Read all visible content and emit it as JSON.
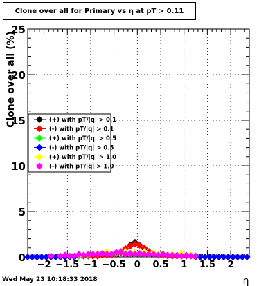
{
  "title": "Clone  over all for Primary vs   η at pT > 0.11",
  "timestamp": "Wed May 23 10:18:33 2018",
  "chart_data": {
    "type": "scatter",
    "title": "Clone  over all for Primary vs   η at pT > 0.11",
    "xlabel": "η",
    "ylabel": "Clone  over all (%)",
    "xlim": [
      -2.35,
      2.4
    ],
    "ylim": [
      0,
      25
    ],
    "xticks": [
      -2,
      -1.5,
      -1,
      -0.5,
      0,
      0.5,
      1,
      1.5,
      2
    ],
    "xtick_labels": [
      "−2",
      "−1.5",
      "−1",
      "−0.5",
      "0",
      "0.5",
      "1",
      "1.5",
      "2"
    ],
    "yticks": [
      0,
      5,
      10,
      15,
      20,
      25
    ],
    "ytick_labels": [
      "0",
      "5",
      "10",
      "15",
      "20",
      "25"
    ],
    "grid": true,
    "legend_position": "left-middle",
    "series": [
      {
        "name": "(+) with pT/|q| > 0.1",
        "color": "#000000",
        "x": [
          -2.25,
          -2.15,
          -2.05,
          -1.95,
          -1.85,
          -1.75,
          -1.65,
          -1.55,
          -1.45,
          -1.35,
          -1.25,
          -1.15,
          -1.05,
          -0.95,
          -0.85,
          -0.75,
          -0.65,
          -0.55,
          -0.45,
          -0.35,
          -0.25,
          -0.15,
          -0.05,
          0.05,
          0.15,
          0.25,
          0.35,
          0.45,
          0.55,
          0.65,
          0.75,
          0.85,
          0.95,
          1.05,
          1.15,
          1.25,
          1.35,
          1.45,
          1.55,
          1.65,
          1.75,
          1.85,
          1.95,
          2.05,
          2.15,
          2.25
        ],
        "y": [
          0,
          0,
          0,
          0,
          0,
          0,
          0,
          0,
          0,
          0,
          0.1,
          0.1,
          0.1,
          0.1,
          0.1,
          0.2,
          0.2,
          0.2,
          0.3,
          0.5,
          0.9,
          1.3,
          1.6,
          1.3,
          0.9,
          0.5,
          0.3,
          0.2,
          0.2,
          0.2,
          0.1,
          0.1,
          0.1,
          0.1,
          0.1,
          0,
          0,
          0,
          0,
          0,
          0,
          0,
          0,
          0,
          0,
          0
        ]
      },
      {
        "name": "(-) with pT/|q| > 0.1",
        "color": "#ff0000",
        "x": [
          -2.25,
          -2.15,
          -2.05,
          -1.95,
          -1.85,
          -1.75,
          -1.65,
          -1.55,
          -1.45,
          -1.35,
          -1.25,
          -1.15,
          -1.05,
          -0.95,
          -0.85,
          -0.75,
          -0.65,
          -0.55,
          -0.45,
          -0.35,
          -0.25,
          -0.15,
          -0.05,
          0.05,
          0.15,
          0.25,
          0.35,
          0.45,
          0.55,
          0.65,
          0.75,
          0.85,
          0.95,
          1.05,
          1.15,
          1.25,
          1.35,
          1.45,
          1.55,
          1.65,
          1.75,
          1.85,
          1.95,
          2.05,
          2.15,
          2.25
        ],
        "y": [
          0,
          0,
          0,
          0,
          0,
          0,
          0,
          0,
          0,
          0,
          0.1,
          0.1,
          0.1,
          0.1,
          0.1,
          0.2,
          0.2,
          0.2,
          0.3,
          0.5,
          0.9,
          1.2,
          1.4,
          1.3,
          1.0,
          0.6,
          0.3,
          0.2,
          0.2,
          0.1,
          0.1,
          0.1,
          0.1,
          0.1,
          0.1,
          0,
          0,
          0,
          0,
          0,
          0,
          0,
          0,
          0,
          0,
          0
        ]
      },
      {
        "name": "(+) with pT/|q| > 0.5",
        "color": "#00ff00",
        "x": [
          -2.25,
          -2.05,
          -1.85,
          -1.65,
          -1.45,
          -1.25,
          -1.05,
          -0.85,
          -0.65,
          -0.45,
          -0.25,
          -0.05,
          0.15,
          0.35,
          0.55,
          0.75,
          0.95,
          1.15,
          1.35,
          1.55,
          1.75,
          1.95,
          2.15
        ],
        "y": [
          0,
          0,
          0,
          0,
          0,
          0.1,
          0.2,
          0.3,
          0.5,
          0.4,
          0.5,
          0.3,
          0.4,
          0.4,
          0.3,
          0.3,
          0.3,
          0.2,
          0,
          0,
          0,
          0,
          0
        ]
      },
      {
        "name": "(-) with pT/|q| > 0.5",
        "color": "#0000ff",
        "x": [
          -2.35,
          -2.25,
          -2.15,
          -2.05,
          -1.95,
          -1.85,
          -1.75,
          -1.65,
          -1.55,
          -1.45,
          -1.35,
          1.35,
          1.45,
          1.55,
          1.65,
          1.75,
          1.85,
          1.95,
          2.05,
          2.15,
          2.25,
          2.35
        ],
        "y": [
          0,
          0,
          0,
          0,
          0,
          0,
          0,
          0,
          0,
          0,
          0,
          0,
          0,
          0,
          0,
          0,
          0,
          0,
          0,
          0,
          0,
          0
        ]
      },
      {
        "name": "(+) with pT/|q| > 1.0",
        "color": "#ffff00",
        "x": [
          -1.25,
          -1.05,
          -0.85,
          -0.65,
          -0.45,
          -0.25,
          -0.05,
          0.15,
          0.35,
          0.55,
          0.75,
          0.95,
          1.15
        ],
        "y": [
          0.2,
          0.3,
          0.4,
          0.6,
          0.5,
          0.6,
          0.5,
          0.6,
          0.5,
          0.4,
          0.3,
          0.4,
          0.2
        ]
      },
      {
        "name": "(-) with pT/|q| > 1.0",
        "color": "#ff00ff",
        "x": [
          -1.85,
          -1.65,
          -1.55,
          -1.45,
          -1.35,
          -1.25,
          -1.15,
          -1.05,
          -0.95,
          -0.85,
          -0.75,
          -0.65,
          -0.55,
          -0.45,
          -0.35,
          -0.25,
          -0.15,
          -0.05,
          0.05,
          0.15,
          0.25,
          0.35,
          0.45,
          0.55,
          0.65,
          0.75,
          0.85,
          0.95,
          1.05,
          1.15,
          1.25
        ],
        "y": [
          0.1,
          0.1,
          0.2,
          0.1,
          0.1,
          0.3,
          0.2,
          0.3,
          0.3,
          0.3,
          0.4,
          0.3,
          0.3,
          0.5,
          0.6,
          0.3,
          0.4,
          0.3,
          0.4,
          0.3,
          0.3,
          0.3,
          0.2,
          0.3,
          0.2,
          0.2,
          0.2,
          0.1,
          0.2,
          0.1,
          0.1
        ]
      }
    ]
  }
}
